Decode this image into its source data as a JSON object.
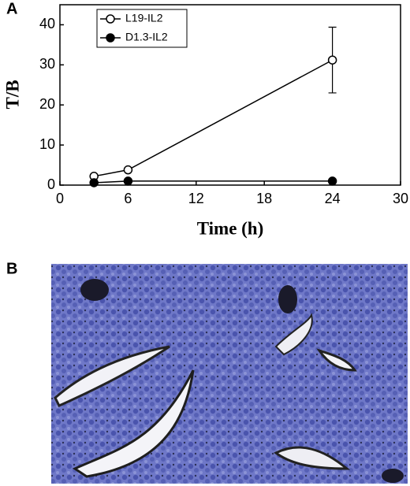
{
  "panel_labels": [
    "A",
    "B"
  ],
  "chart_data": {
    "type": "line",
    "x_label": "Time (h)",
    "y_label": "T/B",
    "xlim": [
      0,
      30
    ],
    "xticks": [
      0,
      6,
      12,
      18,
      24,
      30
    ],
    "ylim": [
      0,
      45
    ],
    "yticks": [
      0,
      10,
      20,
      30,
      40
    ],
    "legend": "upper left",
    "series": [
      {
        "name": "L19-IL2",
        "color": "#000000",
        "marker": "open",
        "x": [
          3,
          6,
          24
        ],
        "values": [
          2.2,
          3.8,
          31.2
        ],
        "errors": [
          null,
          null,
          8.2
        ]
      },
      {
        "name": "D1.3-IL2",
        "color": "#000000",
        "marker": "filled",
        "x": [
          3,
          6,
          24
        ],
        "values": [
          0.6,
          1.0,
          1.0
        ]
      }
    ]
  }
}
